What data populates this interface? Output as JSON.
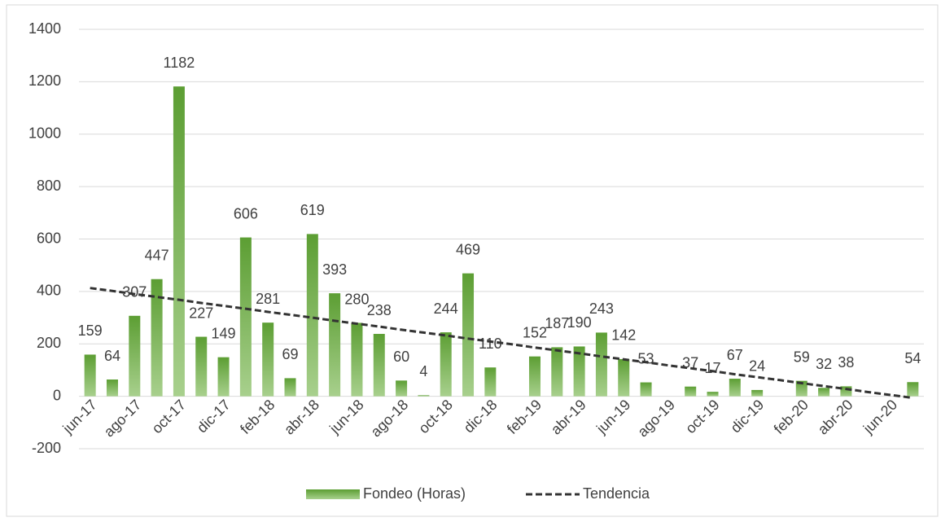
{
  "chart_data": {
    "type": "bar",
    "categories": [
      "jun-17",
      null,
      "ago-17",
      null,
      "oct-17",
      null,
      "dic-17",
      null,
      "feb-18",
      null,
      "abr-18",
      null,
      "jun-18",
      null,
      "ago-18",
      null,
      "oct-18",
      null,
      "dic-18",
      null,
      "feb-19",
      null,
      "abr-19",
      null,
      "jun-19",
      null,
      "ago-19",
      null,
      "oct-19",
      null,
      "dic-19",
      null,
      "feb-20",
      null,
      "abr-20",
      null,
      "jun-20",
      null
    ],
    "series": [
      {
        "name": "Fondeo (Horas)",
        "type": "bar",
        "color": "#70ad47",
        "values": [
          159,
          64,
          307,
          447,
          1182,
          227,
          149,
          606,
          281,
          69,
          619,
          393,
          280,
          238,
          60,
          4,
          244,
          469,
          110,
          null,
          152,
          187,
          190,
          243,
          142,
          53,
          null,
          37,
          17,
          67,
          24,
          null,
          59,
          32,
          38,
          null,
          null,
          54
        ]
      },
      {
        "name": "Tendencia",
        "type": "line",
        "color": "#333333",
        "values": [
          413,
          402,
          390,
          379,
          368,
          356,
          345,
          334,
          322,
          311,
          300,
          288,
          277,
          266,
          254,
          243,
          232,
          220,
          209,
          198,
          186,
          175,
          164,
          152,
          141,
          130,
          118,
          107,
          96,
          84,
          73,
          62,
          50,
          39,
          28,
          16,
          5,
          -6
        ]
      }
    ],
    "ylim": [
      -200,
      1400
    ],
    "yticks": [
      -200,
      0,
      200,
      400,
      600,
      800,
      1000,
      1200,
      1400
    ],
    "grid": true,
    "legend": "bottom"
  }
}
